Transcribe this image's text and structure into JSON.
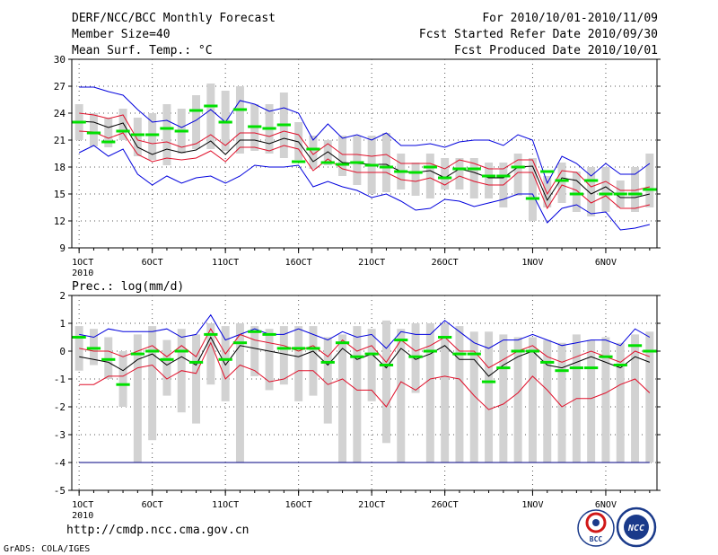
{
  "header": {
    "title": "DERF/NCC/BCC Monthly Forecast",
    "member_size": "Member Size=40",
    "variable": "Mean Surf. Temp.: °C",
    "period": "For 2010/10/01-2010/11/09",
    "fcst_started": "Fcst Started Refer Date 2010/09/30",
    "fcst_produced": "Fcst Produced Date 2010/10/01"
  },
  "footer": {
    "url": "http://cmdp.ncc.cma.gov.cn",
    "credit": "GrADS: COLA/IGES",
    "logo_bcc": "BCC",
    "logo_ncc": "NCC"
  },
  "colors": {
    "bars": "#d2d2d2",
    "median": "#00e000",
    "mean": "#000000",
    "band": "#e0102a",
    "extreme": "#0000dd",
    "baseline": "#000080"
  },
  "chart_data": [
    {
      "type": "line",
      "title": "Mean Surf. Temp.: °C",
      "ylim": [
        9,
        30
      ],
      "yticks": [
        9,
        12,
        15,
        18,
        21,
        24,
        27,
        30
      ],
      "xlim": [
        0.5,
        40.5
      ],
      "xtick_days": [
        1,
        6,
        11,
        16,
        21,
        26,
        32,
        37
      ],
      "xtick_labels": [
        "1OCT",
        "6OCT",
        "11OCT",
        "16OCT",
        "21OCT",
        "26OCT",
        "1NOV",
        "6NOV"
      ],
      "xtick_year": "2010",
      "days": [
        1,
        2,
        3,
        4,
        5,
        6,
        7,
        8,
        9,
        10,
        11,
        12,
        13,
        14,
        15,
        16,
        17,
        18,
        19,
        20,
        21,
        22,
        23,
        24,
        25,
        26,
        27,
        28,
        29,
        30,
        31,
        32,
        33,
        34,
        35,
        36,
        37,
        38,
        39,
        40
      ],
      "bar_low": [
        21.0,
        20.3,
        20.2,
        21.0,
        19.2,
        18.8,
        18.2,
        19.5,
        20.0,
        20.0,
        19.8,
        19.5,
        19.8,
        19.5,
        19.0,
        18.8,
        17.8,
        18.2,
        17.0,
        16.0,
        15.0,
        15.2,
        15.5,
        14.8,
        14.5,
        15.5,
        15.5,
        14.5,
        14.5,
        13.5,
        14.8,
        12.0,
        13.5,
        14.0,
        13.0,
        12.5,
        13.0,
        13.5,
        13.0,
        13.5
      ],
      "bar_high": [
        25.0,
        24.0,
        23.5,
        24.5,
        23.5,
        24.0,
        25.0,
        24.5,
        26.0,
        27.3,
        26.5,
        27.0,
        25.0,
        25.0,
        26.3,
        23.0,
        21.5,
        21.0,
        21.5,
        21.5,
        21.5,
        21.8,
        19.5,
        18.5,
        19.5,
        19.0,
        19.0,
        19.0,
        18.5,
        18.5,
        19.5,
        19.0,
        17.0,
        18.5,
        17.5,
        18.0,
        18.0,
        16.5,
        18.0,
        19.5
      ],
      "median": [
        23.0,
        21.8,
        20.8,
        22.0,
        21.6,
        21.6,
        22.3,
        22.0,
        24.3,
        24.8,
        23.0,
        24.4,
        22.5,
        22.3,
        22.7,
        18.6,
        20.0,
        18.5,
        18.3,
        18.5,
        18.2,
        18.0,
        17.5,
        17.4,
        18.0,
        16.8,
        17.8,
        17.8,
        17.0,
        17.0,
        18.0,
        14.5,
        17.5,
        16.5,
        15.0,
        16.5,
        15.0,
        15.0,
        15.0,
        15.5
      ],
      "upper": [
        24.0,
        23.8,
        23.4,
        23.8,
        21.0,
        20.6,
        20.8,
        20.2,
        20.6,
        21.6,
        20.4,
        21.8,
        21.8,
        21.4,
        22.0,
        21.6,
        19.4,
        20.6,
        19.4,
        19.4,
        19.2,
        19.4,
        18.4,
        18.4,
        18.4,
        17.8,
        18.8,
        18.4,
        17.8,
        17.8,
        18.8,
        18.8,
        15.0,
        17.6,
        17.4,
        15.8,
        16.4,
        15.4,
        15.4,
        15.8
      ],
      "mean": [
        23.1,
        23.0,
        22.4,
        22.9,
        20.2,
        19.4,
        20.0,
        19.6,
        19.9,
        20.9,
        19.4,
        21.0,
        21.0,
        20.6,
        21.2,
        20.8,
        18.6,
        19.7,
        18.5,
        18.4,
        18.3,
        18.3,
        17.5,
        17.4,
        17.6,
        16.8,
        17.8,
        17.4,
        16.8,
        16.8,
        18.0,
        18.1,
        14.3,
        16.8,
        16.5,
        15.0,
        15.8,
        14.6,
        14.6,
        15.0
      ],
      "lower": [
        22.0,
        21.9,
        21.2,
        21.8,
        19.4,
        18.6,
        19.0,
        18.8,
        19.0,
        19.8,
        18.6,
        20.2,
        20.2,
        19.8,
        20.4,
        20.0,
        17.6,
        18.9,
        17.8,
        17.4,
        17.4,
        17.4,
        16.6,
        16.4,
        16.8,
        16.0,
        17.0,
        16.4,
        16.0,
        16.0,
        17.4,
        17.4,
        13.4,
        16.0,
        15.4,
        14.0,
        14.8,
        13.4,
        13.4,
        13.8
      ],
      "max": [
        26.9,
        26.9,
        26.4,
        26.0,
        24.4,
        23.0,
        23.2,
        22.4,
        23.2,
        24.4,
        23.0,
        25.4,
        25.0,
        24.2,
        24.6,
        24.0,
        21.0,
        22.8,
        21.2,
        21.6,
        21.0,
        21.8,
        20.4,
        20.4,
        20.6,
        20.2,
        20.8,
        21.0,
        21.0,
        20.4,
        21.6,
        21.0,
        16.2,
        19.2,
        18.4,
        17.0,
        18.4,
        17.2,
        17.2,
        18.4
      ],
      "min": [
        19.6,
        20.4,
        19.2,
        20.0,
        17.2,
        16.0,
        17.0,
        16.2,
        16.8,
        17.0,
        16.2,
        17.0,
        18.2,
        18.0,
        18.0,
        18.2,
        15.8,
        16.4,
        15.8,
        15.4,
        14.6,
        15.0,
        14.2,
        13.2,
        13.4,
        14.4,
        14.2,
        13.6,
        14.0,
        14.4,
        15.0,
        15.0,
        11.8,
        13.4,
        13.8,
        12.8,
        13.0,
        11.0,
        11.2,
        11.6
      ]
    },
    {
      "type": "line",
      "title": "Prec.: log(mm/d)",
      "ylim": [
        -5,
        2
      ],
      "yticks": [
        -5,
        -4,
        -3,
        -2,
        -1,
        0,
        1,
        2
      ],
      "xlim": [
        0.5,
        40.5
      ],
      "xtick_days": [
        1,
        6,
        11,
        16,
        21,
        26,
        32,
        37
      ],
      "xtick_labels": [
        "1OCT",
        "6OCT",
        "11OCT",
        "16OCT",
        "21OCT",
        "26OCT",
        "1NOV",
        "6NOV"
      ],
      "xtick_year": "2010",
      "baseline": -4,
      "days": [
        1,
        2,
        3,
        4,
        5,
        6,
        7,
        8,
        9,
        10,
        11,
        12,
        13,
        14,
        15,
        16,
        17,
        18,
        19,
        20,
        21,
        22,
        23,
        24,
        25,
        26,
        27,
        28,
        29,
        30,
        31,
        32,
        33,
        34,
        35,
        36,
        37,
        38,
        39,
        40
      ],
      "bar_low": [
        -0.7,
        -0.5,
        -1.0,
        -2.0,
        -4.0,
        -3.2,
        -1.6,
        -2.2,
        -2.6,
        -1.2,
        -1.8,
        -4.0,
        -0.9,
        -1.4,
        -1.2,
        -1.8,
        -1.6,
        -2.6,
        -4.0,
        -4.0,
        -1.8,
        -3.3,
        -4.0,
        -1.5,
        -4.0,
        -4.0,
        -4.0,
        -4.0,
        -4.0,
        -4.0,
        -4.0,
        -4.0,
        -4.0,
        -4.0,
        -4.0,
        -4.0,
        -4.0,
        -4.0,
        -4.0,
        -4.0
      ],
      "bar_high": [
        0.9,
        0.8,
        0.5,
        0.0,
        0.6,
        0.9,
        0.4,
        0.8,
        0.6,
        1.0,
        0.9,
        1.0,
        0.9,
        0.8,
        0.9,
        0.9,
        0.9,
        0.5,
        0.6,
        0.9,
        0.8,
        1.1,
        0.8,
        1.0,
        1.0,
        1.0,
        0.9,
        0.7,
        0.7,
        0.6,
        0.5,
        0.5,
        0.4,
        0.3,
        0.6,
        0.4,
        0.5,
        0.3,
        0.6,
        0.7
      ],
      "median": [
        0.5,
        0.1,
        -0.3,
        -1.2,
        -0.1,
        0.0,
        -0.3,
        0.0,
        -0.4,
        0.6,
        -0.3,
        0.3,
        0.7,
        0.6,
        0.1,
        0.1,
        0.1,
        -0.4,
        0.3,
        -0.2,
        -0.1,
        -0.5,
        0.4,
        -0.2,
        0.0,
        0.5,
        -0.1,
        -0.1,
        -1.1,
        -0.6,
        0.0,
        0.0,
        -0.4,
        -0.7,
        -0.6,
        -0.6,
        -0.2,
        -0.5,
        0.2,
        0.0
      ],
      "upper": [
        0.1,
        0.0,
        0.0,
        -0.2,
        0.0,
        0.2,
        -0.2,
        0.2,
        -0.2,
        0.8,
        -0.1,
        0.6,
        0.4,
        0.3,
        0.2,
        0.0,
        0.2,
        -0.2,
        0.4,
        0.0,
        0.2,
        -0.4,
        0.4,
        0.0,
        0.2,
        0.5,
        0.0,
        0.0,
        -0.6,
        -0.3,
        0.0,
        0.2,
        -0.2,
        -0.4,
        -0.2,
        0.0,
        -0.2,
        -0.4,
        0.0,
        -0.2
      ],
      "mean": [
        -0.2,
        -0.3,
        -0.4,
        -0.7,
        -0.3,
        -0.1,
        -0.5,
        -0.2,
        -0.5,
        0.5,
        -0.5,
        0.2,
        0.1,
        0.0,
        -0.1,
        -0.2,
        0.0,
        -0.5,
        0.1,
        -0.3,
        -0.1,
        -0.6,
        0.1,
        -0.3,
        -0.1,
        0.2,
        -0.3,
        -0.3,
        -0.9,
        -0.5,
        -0.2,
        0.0,
        -0.5,
        -0.6,
        -0.4,
        -0.2,
        -0.4,
        -0.6,
        -0.2,
        -0.4
      ],
      "lower": [
        -1.2,
        -1.2,
        -0.9,
        -0.9,
        -0.6,
        -0.5,
        -1.0,
        -0.7,
        -0.8,
        0.3,
        -1.0,
        -0.5,
        -0.7,
        -1.1,
        -1.0,
        -0.7,
        -0.7,
        -1.2,
        -1.0,
        -1.4,
        -1.4,
        -2.0,
        -1.1,
        -1.4,
        -1.0,
        -0.9,
        -1.0,
        -1.6,
        -2.1,
        -1.9,
        -1.5,
        -0.9,
        -1.4,
        -2.0,
        -1.7,
        -1.7,
        -1.5,
        -1.2,
        -1.0,
        -1.5
      ],
      "max": [
        0.6,
        0.5,
        0.8,
        0.7,
        0.7,
        0.7,
        0.8,
        0.5,
        0.6,
        1.3,
        0.4,
        0.6,
        0.8,
        0.6,
        0.6,
        0.8,
        0.6,
        0.4,
        0.7,
        0.5,
        0.6,
        0.1,
        0.7,
        0.6,
        0.6,
        1.1,
        0.7,
        0.3,
        0.1,
        0.4,
        0.4,
        0.6,
        0.4,
        0.2,
        0.3,
        0.4,
        0.4,
        0.2,
        0.8,
        0.5
      ]
    }
  ]
}
